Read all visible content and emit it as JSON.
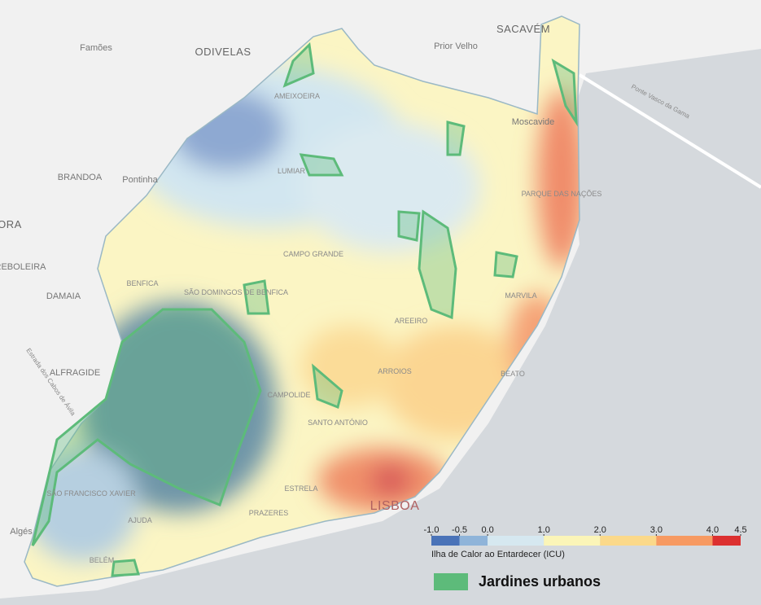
{
  "map": {
    "places": [
      "Famões",
      "ODIVELAS",
      "Prior Velho",
      "SACAVÉM",
      "Moscavide",
      "BRANDOA",
      "Pontinha",
      "ORA",
      "REBOLEIRA",
      "DAMAIA",
      "ALFRAGIDE",
      "Algés",
      "AMEIXOEIRA",
      "LUMIAR",
      "PARQUE DAS NAÇÕES",
      "CAMPO GRANDE",
      "BENFICA",
      "SÃO DOMINGOS DE BENFICA",
      "MARVILA",
      "AREEIRO",
      "ARROIOS",
      "BEATO",
      "CAMPOLIDE",
      "SANTO ANTÓNIO",
      "ESTRELA",
      "PRAZERES",
      "SÃO FRANCISCO XAVIER",
      "AJUDA",
      "BELÉM",
      "LISBOA"
    ],
    "roads": [
      "Ponte Vasco da Gama",
      "Estrada dos Cabos de Ávila"
    ]
  },
  "legend": {
    "title": "Ilha de Calor ao Entardecer (ICU)",
    "ticks": [
      {
        "value": -1,
        "label": "-1.0"
      },
      {
        "value": -0.5,
        "label": "-0.5"
      },
      {
        "value": 0,
        "label": "0.0"
      },
      {
        "value": 1,
        "label": "1.0"
      },
      {
        "value": 2,
        "label": "2.0"
      },
      {
        "value": 3,
        "label": "3.0"
      },
      {
        "value": 4,
        "label": "4.0"
      },
      {
        "value": 4.5,
        "label": "4.5"
      }
    ],
    "colors": [
      "#4a73b8",
      "#8fb4d9",
      "#d6e8f0",
      "#fbf5b8",
      "#fbd98a",
      "#f79a62",
      "#dc3030"
    ],
    "garden_label": "Jardines urbanos",
    "garden_color": "#5dbb7a"
  }
}
